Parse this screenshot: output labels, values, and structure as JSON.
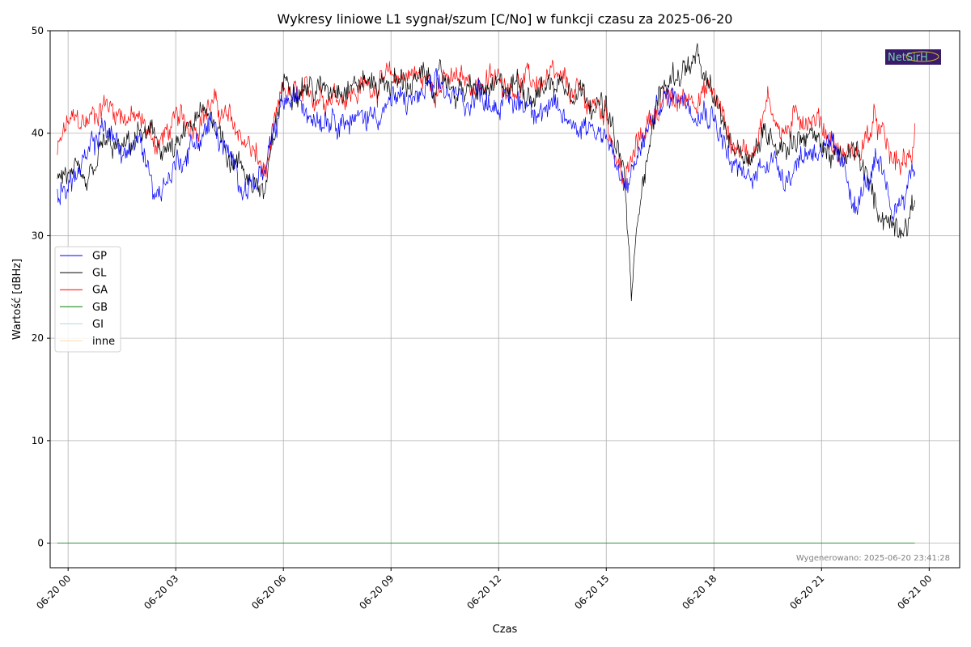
{
  "chart_data": {
    "type": "line",
    "title": "Wykresy liniowe L1 sygnał/szum [C/No] w funkcji czasu za 2025-06-20",
    "xlabel": "Czas",
    "ylabel": "Wartość [dBHz]",
    "x_unit": "hours since 2025-06-20 00:00",
    "xlim": [
      -0.5,
      24.85
    ],
    "ylim": [
      -2.4,
      50
    ],
    "grid": true,
    "legend_position": "center-left",
    "x_ticks": [
      0,
      3,
      6,
      9,
      12,
      15,
      18,
      21,
      24
    ],
    "x_tick_labels": [
      "06-20 00",
      "06-20 03",
      "06-20 06",
      "06-20 09",
      "06-20 12",
      "06-20 15",
      "06-20 18",
      "06-20 21",
      "06-21 00"
    ],
    "y_ticks": [
      0,
      10,
      20,
      30,
      40,
      50
    ],
    "y_tick_labels": [
      "0",
      "10",
      "20",
      "30",
      "40",
      "50"
    ],
    "footer": "Wygenerowano: 2025-06-20 23:41:28",
    "logo_text": "NetSirH",
    "series": [
      {
        "name": "GP",
        "color": "#0000ff",
        "x": [
          -0.3,
          0,
          0.5,
          1,
          1.5,
          2,
          2.5,
          3,
          3.5,
          4,
          4.5,
          5,
          5.5,
          6,
          6.5,
          7,
          7.5,
          8,
          8.5,
          9,
          9.5,
          10,
          10.5,
          11,
          11.5,
          12,
          12.5,
          13,
          13.5,
          14,
          14.5,
          15,
          15.5,
          16,
          16.5,
          17,
          17.5,
          18,
          18.5,
          19,
          19.5,
          20,
          20.5,
          21,
          21.5,
          22,
          22.5,
          23,
          23.5,
          23.6
        ],
        "y": [
          34,
          35,
          37,
          41,
          38,
          39,
          34,
          37,
          39,
          41,
          37,
          35,
          36,
          43,
          43,
          42,
          42,
          41,
          42,
          43,
          43,
          44,
          44,
          43,
          44,
          43,
          43,
          43,
          42,
          41,
          41,
          40,
          34,
          39,
          43,
          44,
          43,
          42,
          37,
          35,
          38,
          36,
          38,
          39,
          37,
          33,
          37,
          32,
          36,
          37
        ]
      },
      {
        "name": "GL",
        "color": "#000000",
        "x": [
          -0.3,
          0,
          0.5,
          1,
          1.5,
          2,
          2.5,
          3,
          3.5,
          4,
          4.5,
          5,
          5.5,
          6,
          6.5,
          7,
          7.5,
          8,
          8.5,
          9,
          9.5,
          10,
          10.5,
          11,
          11.5,
          12,
          12.5,
          13,
          13.5,
          14,
          14.5,
          15,
          15.5,
          15.7,
          16,
          16.5,
          17,
          17.5,
          18,
          18.5,
          19,
          19.5,
          20,
          20.5,
          21,
          21.5,
          22,
          22.5,
          23,
          23.5,
          23.6
        ],
        "y": [
          36,
          36,
          34,
          39,
          38,
          40,
          39,
          38,
          41,
          42,
          38,
          36,
          34,
          45,
          45,
          44,
          45,
          45,
          45,
          45,
          45,
          45,
          45,
          44,
          44,
          44,
          45,
          44,
          45,
          45,
          44,
          42,
          36,
          24,
          36,
          44,
          46,
          47,
          43,
          39,
          38,
          40,
          39,
          40,
          39,
          37,
          38,
          33,
          31,
          32,
          33
        ]
      },
      {
        "name": "GA",
        "color": "#ff0000",
        "x": [
          -0.3,
          0,
          0.5,
          1,
          1.5,
          2,
          2.5,
          3,
          3.5,
          4,
          4.5,
          5,
          5.5,
          6,
          6.5,
          7,
          7.5,
          8,
          8.5,
          9,
          9.5,
          10,
          10.5,
          11,
          11.5,
          12,
          12.5,
          13,
          13.5,
          14,
          14.5,
          15,
          15.5,
          16,
          16.5,
          17,
          17.5,
          18,
          18.5,
          19,
          19.5,
          20,
          20.5,
          21,
          21.5,
          22,
          22.5,
          23,
          23.5,
          23.6
        ],
        "y": [
          38,
          41,
          41,
          43,
          42,
          41,
          39,
          41,
          41,
          43,
          41,
          39,
          36,
          44,
          43,
          44,
          44,
          44,
          45,
          45,
          46,
          45,
          45,
          45,
          45,
          45,
          45,
          45,
          45,
          44,
          43,
          42,
          35,
          40,
          43,
          43,
          44,
          44,
          39,
          38,
          43,
          40,
          42,
          41,
          38,
          38,
          41,
          37,
          37,
          41
        ]
      },
      {
        "name": "GB",
        "color": "#008000",
        "x": [
          -0.3,
          23.6
        ],
        "y": [
          0,
          0
        ]
      },
      {
        "name": "GI",
        "color": "#add8e6",
        "x": [
          -0.3,
          23.6
        ],
        "y": [
          0,
          0
        ]
      },
      {
        "name": "inne",
        "color": "#ffd8b0",
        "x": [
          -0.3,
          23.6
        ],
        "y": [
          0,
          0
        ]
      }
    ]
  }
}
